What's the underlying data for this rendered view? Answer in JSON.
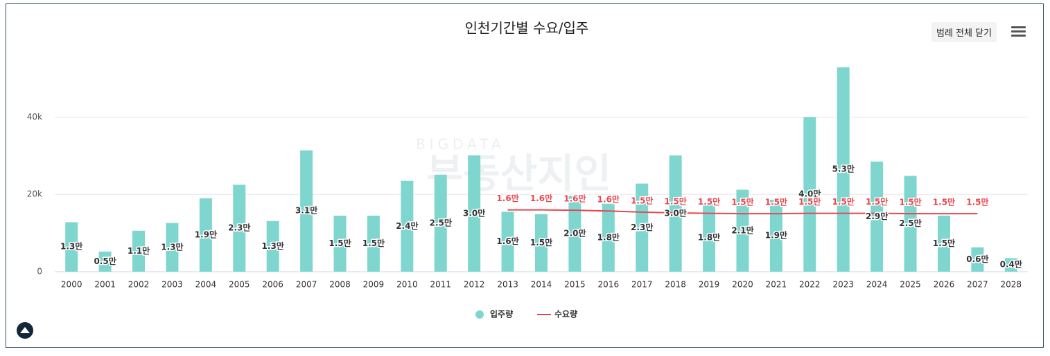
{
  "chart_data": {
    "type": "bar_line",
    "title": "인천기간별 수요/입주",
    "button": "범례 전체 닫기",
    "watermark": [
      "BIGDATA",
      "부동산지인"
    ],
    "categories": [
      "2000",
      "2001",
      "2002",
      "2003",
      "2004",
      "2005",
      "2006",
      "2007",
      "2008",
      "2009",
      "2010",
      "2011",
      "2012",
      "2013",
      "2014",
      "2015",
      "2016",
      "2017",
      "2018",
      "2019",
      "2020",
      "2021",
      "2022",
      "2023",
      "2024",
      "2025",
      "2026",
      "2027",
      "2028"
    ],
    "ylim": [
      0,
      56000
    ],
    "yticks": [
      0,
      {
        "value": 20000,
        "label": "20k"
      },
      {
        "value": 40000,
        "label": "40k"
      }
    ],
    "grid": true,
    "series": [
      {
        "name": "입주량",
        "type": "bar",
        "color": "#7fd6cf",
        "values": [
          12800,
          5200,
          10600,
          12600,
          19000,
          22500,
          13100,
          31400,
          14500,
          14500,
          23500,
          25100,
          30100,
          15500,
          14900,
          19600,
          17600,
          22800,
          30100,
          17600,
          21200,
          18600,
          40000,
          52900,
          28500,
          24800,
          14500,
          6300,
          3500
        ],
        "value_labels": [
          "1.3만",
          "0.5만",
          "1.1만",
          "1.3만",
          "1.9만",
          "2.3만",
          "1.3만",
          "3.1만",
          "1.5만",
          "1.5만",
          "2.4만",
          "2.5만",
          "3.0만",
          "1.6만",
          "1.5만",
          "2.0만",
          "1.8만",
          "2.3만",
          "3.0만",
          "1.8만",
          "2.1만",
          "1.9만",
          "4.0만",
          "5.3만",
          "2.9만",
          "2.5만",
          "1.5만",
          "0.6만",
          "0.4만"
        ]
      },
      {
        "name": "수요량",
        "type": "line",
        "color": "#e8474f",
        "values": [
          null,
          null,
          null,
          null,
          null,
          null,
          null,
          null,
          null,
          null,
          null,
          null,
          null,
          16000,
          16000,
          15900,
          15700,
          15400,
          15200,
          15100,
          15000,
          15000,
          15100,
          15100,
          15100,
          15000,
          15000,
          15000,
          null
        ],
        "value_labels": [
          null,
          null,
          null,
          null,
          null,
          null,
          null,
          null,
          null,
          null,
          null,
          null,
          null,
          "1.6만",
          "1.6만",
          "1.6만",
          "1.6만",
          "1.5만",
          "1.5만",
          "1.5만",
          "1.5만",
          "1.5만",
          "1.5만",
          "1.5만",
          "1.5만",
          "1.5만",
          "1.5만",
          "1.5만",
          null
        ]
      }
    ]
  }
}
